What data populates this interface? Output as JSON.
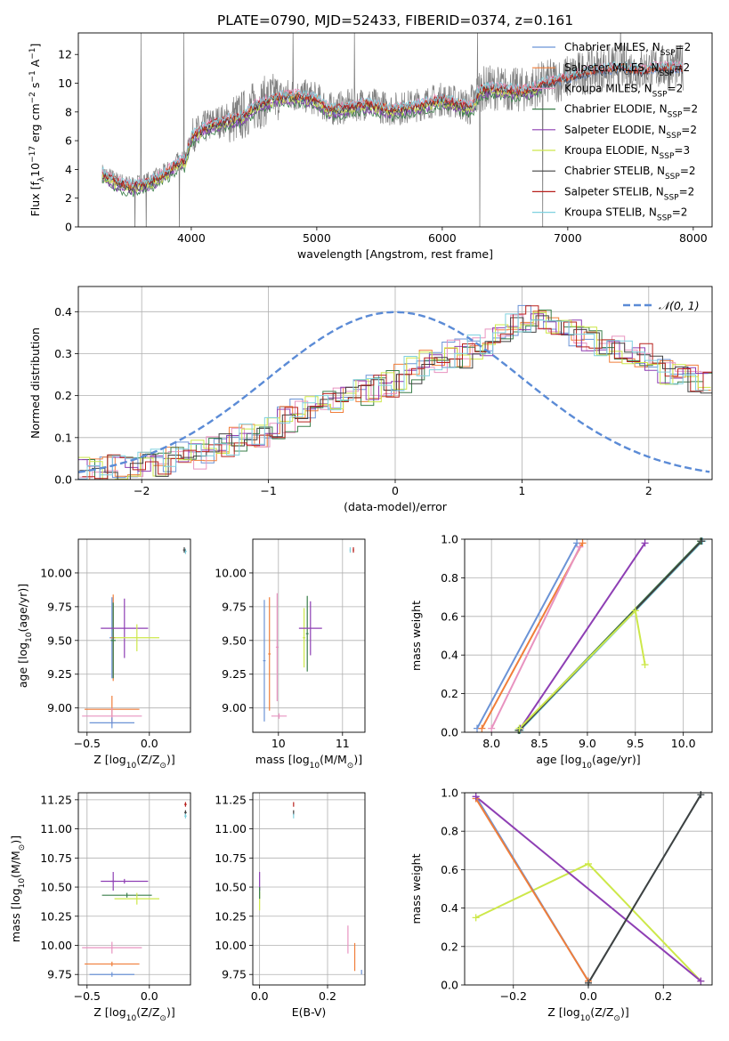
{
  "figure": {
    "title": "PLATE=0790, MJD=52433, FIBERID=0374, z=0.161"
  },
  "colors": {
    "data_grey": "#7f7f7f",
    "chabrier_miles": "#6b93d6",
    "salpeter_miles": "#f07e3a",
    "kroupa_miles": "#e893c0",
    "chabrier_elodie": "#3a7f4a",
    "salpeter_elodie": "#8e3fb4",
    "kroupa_elodie": "#cde84a",
    "chabrier_stelib": "#404040",
    "salpeter_stelib": "#b8201c",
    "kroupa_stelib": "#7fd1df",
    "gaussian": "#5b8bd6",
    "grid": "#b0b0b0"
  },
  "chart_data": [
    {
      "id": "spectrum",
      "type": "line",
      "title": "PLATE=0790, MJD=52433, FIBERID=0374, z=0.161",
      "xlabel": "wavelength [Angstrom, rest frame]",
      "ylabel_parts": [
        "Flux [f",
        "λ",
        "10",
        "−17",
        " erg cm",
        "−2",
        " s",
        "−1",
        " A",
        "−1",
        "]"
      ],
      "xlim": [
        3100,
        8150
      ],
      "ylim": [
        0,
        13.5
      ],
      "xticks": [
        4000,
        5000,
        6000,
        7000,
        8000
      ],
      "yticks": [
        0,
        2,
        4,
        6,
        8,
        10,
        12
      ],
      "grid": false,
      "legend_position": "upper right",
      "legend": [
        {
          "name": "Chabrier MILES, N",
          "sub": "SSP",
          "suffix": "=2",
          "color_key": "chabrier_miles"
        },
        {
          "name": "Salpeter MILES, N",
          "sub": "SSP",
          "suffix": "=2",
          "color_key": "salpeter_miles"
        },
        {
          "name": "Kroupa MILES, N",
          "sub": "SSP",
          "suffix": "=2",
          "color_key": "kroupa_miles"
        },
        {
          "name": "Chabrier ELODIE, N",
          "sub": "SSP",
          "suffix": "=2",
          "color_key": "chabrier_elodie"
        },
        {
          "name": "Salpeter ELODIE, N",
          "sub": "SSP",
          "suffix": "=2",
          "color_key": "salpeter_elodie"
        },
        {
          "name": "Kroupa ELODIE, N",
          "sub": "SSP",
          "suffix": "=3",
          "color_key": "kroupa_elodie"
        },
        {
          "name": "Chabrier STELIB, N",
          "sub": "SSP",
          "suffix": "=2",
          "color_key": "chabrier_stelib"
        },
        {
          "name": "Salpeter STELIB, N",
          "sub": "SSP",
          "suffix": "=2",
          "color_key": "salpeter_stelib"
        },
        {
          "name": "Kroupa STELIB, N",
          "sub": "SSP",
          "suffix": "=2",
          "color_key": "kroupa_stelib"
        }
      ],
      "continuum_knots": [
        [
          3280,
          3.8
        ],
        [
          3400,
          3.2
        ],
        [
          3500,
          2.9
        ],
        [
          3600,
          3.0
        ],
        [
          3700,
          3.3
        ],
        [
          3800,
          3.8
        ],
        [
          3900,
          4.6
        ],
        [
          3950,
          4.6
        ],
        [
          4000,
          6.3
        ],
        [
          4100,
          6.9
        ],
        [
          4200,
          7.3
        ],
        [
          4300,
          7.5
        ],
        [
          4400,
          7.7
        ],
        [
          4500,
          8.4
        ],
        [
          4600,
          8.8
        ],
        [
          4700,
          9.1
        ],
        [
          4800,
          9.2
        ],
        [
          4900,
          9.1
        ],
        [
          5000,
          8.9
        ],
        [
          5100,
          8.2
        ],
        [
          5200,
          8.3
        ],
        [
          5300,
          8.5
        ],
        [
          5400,
          8.6
        ],
        [
          5500,
          8.4
        ],
        [
          5600,
          8.2
        ],
        [
          5700,
          8.3
        ],
        [
          5800,
          8.5
        ],
        [
          5900,
          8.7
        ],
        [
          6000,
          8.9
        ],
        [
          6100,
          8.7
        ],
        [
          6200,
          8.4
        ],
        [
          6250,
          8.6
        ],
        [
          6300,
          9.6
        ],
        [
          6400,
          9.7
        ],
        [
          6500,
          9.6
        ],
        [
          6600,
          9.5
        ],
        [
          6700,
          9.6
        ],
        [
          6800,
          10.0
        ],
        [
          6900,
          10.2
        ],
        [
          7000,
          10.4
        ],
        [
          7100,
          10.7
        ],
        [
          7200,
          10.9
        ],
        [
          7300,
          11.0
        ],
        [
          7400,
          11.1
        ],
        [
          7500,
          11.0
        ],
        [
          7600,
          10.9
        ],
        [
          7700,
          11.1
        ],
        [
          7800,
          11.1
        ],
        [
          7920,
          11.1
        ]
      ],
      "sky_spikes": [
        3550,
        3600,
        3640,
        3905,
        3940,
        4810,
        5300,
        6280,
        6300,
        6800,
        7420
      ]
    },
    {
      "id": "residuals",
      "type": "line",
      "xlabel": "(data-model)/error",
      "ylabel": "Normed distribution",
      "xlim": [
        -2.5,
        2.5
      ],
      "ylim": [
        0,
        0.46
      ],
      "xticks": [
        -2,
        -1,
        0,
        1,
        2
      ],
      "yticks": [
        0.0,
        0.1,
        0.2,
        0.3,
        0.4
      ],
      "grid": true,
      "legend": [
        {
          "name": "𝒩(0, 1)",
          "color_key": "gaussian",
          "dashed": true
        }
      ],
      "hist_bin_start": -2.5,
      "hist_bin_width": 0.1,
      "hist_base": [
        0.02,
        0.02,
        0.03,
        0.03,
        0.03,
        0.04,
        0.04,
        0.05,
        0.06,
        0.06,
        0.07,
        0.08,
        0.09,
        0.1,
        0.11,
        0.13,
        0.14,
        0.16,
        0.17,
        0.18,
        0.19,
        0.2,
        0.21,
        0.22,
        0.23,
        0.24,
        0.26,
        0.28,
        0.29,
        0.3,
        0.3,
        0.31,
        0.33,
        0.34,
        0.36,
        0.38,
        0.39,
        0.38,
        0.37,
        0.35,
        0.34,
        0.33,
        0.31,
        0.3,
        0.29,
        0.27,
        0.26,
        0.25,
        0.24,
        0.23
      ]
    },
    {
      "id": "age_vs_z",
      "type": "scatter",
      "xlabel_parts": [
        "Z [log",
        "10",
        "(Z/Z",
        "⊙",
        ")]"
      ],
      "ylabel_parts": [
        "age  [log",
        "10",
        "(age/yr)]"
      ],
      "xlim": [
        -0.57,
        0.33
      ],
      "ylim": [
        8.82,
        10.25
      ],
      "xticks": [
        -0.5,
        0.0
      ],
      "yticks": [
        9.0,
        9.25,
        9.5,
        9.75,
        10.0
      ],
      "grid": true,
      "points": [
        {
          "x": -0.3,
          "y": 9.52,
          "xerr": 0.02,
          "yerr": 0.3,
          "color_key": "chabrier_miles"
        },
        {
          "x": -0.29,
          "y": 9.52,
          "xerr": 0.02,
          "yerr": 0.32,
          "color_key": "salpeter_miles"
        },
        {
          "x": -0.29,
          "y": 9.5,
          "xerr": 0.02,
          "yerr": 0.28,
          "color_key": "chabrier_elodie"
        },
        {
          "x": -0.2,
          "y": 9.59,
          "xerr": 0.19,
          "yerr": 0.22,
          "color_key": "salpeter_elodie"
        },
        {
          "x": -0.1,
          "y": 9.52,
          "xerr": 0.18,
          "yerr": 0.1,
          "color_key": "kroupa_elodie"
        },
        {
          "x": -0.3,
          "y": 8.99,
          "xerr": 0.22,
          "yerr": 0.1,
          "color_key": "salpeter_miles"
        },
        {
          "x": -0.3,
          "y": 8.94,
          "xerr": 0.24,
          "yerr": 0.06,
          "color_key": "kroupa_miles"
        },
        {
          "x": -0.3,
          "y": 8.89,
          "xerr": 0.18,
          "yerr": 0.04,
          "color_key": "chabrier_miles"
        },
        {
          "x": 0.29,
          "y": 10.16,
          "xerr": 0.01,
          "yerr": 0.02,
          "color_key": "kroupa_stelib"
        },
        {
          "x": 0.28,
          "y": 10.17,
          "xerr": 0.01,
          "yerr": 0.02,
          "color_key": "chabrier_stelib"
        }
      ]
    },
    {
      "id": "age_vs_mass",
      "type": "scatter",
      "xlabel_parts": [
        "mass [log",
        "10",
        "(M/M",
        "⊙",
        ")]"
      ],
      "xlim": [
        9.6,
        11.35
      ],
      "ylim": [
        8.82,
        10.25
      ],
      "xticks": [
        10,
        11
      ],
      "yticks": [
        9.0,
        9.25,
        9.5,
        9.75,
        10.0
      ],
      "grid": true,
      "points": [
        {
          "x": 9.78,
          "y": 9.35,
          "xerr": 0.02,
          "yerr": 0.45,
          "color_key": "chabrier_miles"
        },
        {
          "x": 9.86,
          "y": 9.4,
          "xerr": 0.02,
          "yerr": 0.42,
          "color_key": "salpeter_miles"
        },
        {
          "x": 9.98,
          "y": 9.45,
          "xerr": 0.02,
          "yerr": 0.4,
          "color_key": "kroupa_miles"
        },
        {
          "x": 10.01,
          "y": 8.94,
          "xerr": 0.12,
          "yerr": 0.02,
          "color_key": "kroupa_miles"
        },
        {
          "x": 10.4,
          "y": 9.52,
          "xerr": 0.02,
          "yerr": 0.22,
          "color_key": "kroupa_elodie"
        },
        {
          "x": 10.45,
          "y": 9.55,
          "xerr": 0.02,
          "yerr": 0.28,
          "color_key": "chabrier_elodie"
        },
        {
          "x": 10.5,
          "y": 9.59,
          "xerr": 0.18,
          "yerr": 0.2,
          "color_key": "salpeter_elodie"
        },
        {
          "x": 11.12,
          "y": 10.17,
          "xerr": 0.01,
          "yerr": 0.02,
          "color_key": "kroupa_stelib"
        },
        {
          "x": 11.17,
          "y": 10.17,
          "xerr": 0.01,
          "yerr": 0.02,
          "color_key": "salpeter_stelib"
        }
      ]
    },
    {
      "id": "weight_vs_age",
      "type": "line",
      "xlabel_parts": [
        "age  [log",
        "10",
        "(age/yr)]"
      ],
      "ylabel": "mass weight",
      "xlim": [
        7.72,
        10.3
      ],
      "ylim": [
        0.0,
        1.0
      ],
      "xticks": [
        8.0,
        8.5,
        9.0,
        9.5,
        10.0
      ],
      "yticks": [
        0.0,
        0.2,
        0.4,
        0.6,
        0.8,
        1.0
      ],
      "grid": true,
      "series": [
        {
          "color_key": "chabrier_miles",
          "x": [
            7.85,
            8.89
          ],
          "y": [
            0.02,
            0.98
          ]
        },
        {
          "color_key": "salpeter_miles",
          "x": [
            7.9,
            8.95
          ],
          "y": [
            0.02,
            0.98
          ]
        },
        {
          "color_key": "kroupa_miles",
          "x": [
            8.0,
            8.92
          ],
          "y": [
            0.02,
            0.96
          ]
        },
        {
          "color_key": "salpeter_elodie",
          "x": [
            8.3,
            9.6
          ],
          "y": [
            0.02,
            0.98
          ]
        },
        {
          "color_key": "chabrier_elodie",
          "x": [
            8.28,
            10.18
          ],
          "y": [
            0.01,
            0.99
          ]
        },
        {
          "color_key": "kroupa_stelib",
          "x": [
            8.3,
            10.2
          ],
          "y": [
            0.01,
            0.99
          ]
        },
        {
          "color_key": "chabrier_stelib",
          "x": [
            8.29,
            10.19
          ],
          "y": [
            0.01,
            0.99
          ]
        },
        {
          "color_key": "kroupa_elodie",
          "x": [
            8.29,
            9.5,
            9.6
          ],
          "y": [
            0.02,
            0.63,
            0.35
          ]
        }
      ]
    },
    {
      "id": "mass_vs_z",
      "type": "scatter",
      "xlabel_parts": [
        "Z [log",
        "10",
        "(Z/Z",
        "⊙",
        ")]"
      ],
      "ylabel_parts": [
        "mass [log",
        "10",
        "(M/M",
        "⊙",
        ")]"
      ],
      "xlim": [
        -0.57,
        0.33
      ],
      "ylim": [
        9.66,
        11.31
      ],
      "xticks": [
        -0.5,
        0.0
      ],
      "yticks": [
        9.75,
        10.0,
        10.25,
        10.5,
        10.75,
        11.0,
        11.25
      ],
      "grid": true,
      "points": [
        {
          "x": -0.29,
          "y": 10.55,
          "xerr": 0.02,
          "yerr": 0.08,
          "color_key": "salpeter_elodie"
        },
        {
          "x": -0.2,
          "y": 10.55,
          "xerr": 0.19,
          "yerr": 0.02,
          "color_key": "salpeter_elodie"
        },
        {
          "x": -0.18,
          "y": 10.43,
          "xerr": 0.2,
          "yerr": 0.02,
          "color_key": "chabrier_elodie"
        },
        {
          "x": -0.1,
          "y": 10.4,
          "xerr": 0.18,
          "yerr": 0.05,
          "color_key": "kroupa_elodie"
        },
        {
          "x": -0.3,
          "y": 9.98,
          "xerr": 0.24,
          "yerr": 0.05,
          "color_key": "kroupa_miles"
        },
        {
          "x": -0.3,
          "y": 9.84,
          "xerr": 0.22,
          "yerr": 0.02,
          "color_key": "salpeter_miles"
        },
        {
          "x": -0.3,
          "y": 9.75,
          "xerr": 0.18,
          "yerr": 0.02,
          "color_key": "chabrier_miles"
        },
        {
          "x": 0.29,
          "y": 11.21,
          "xerr": 0.01,
          "yerr": 0.02,
          "color_key": "salpeter_stelib"
        },
        {
          "x": 0.29,
          "y": 11.14,
          "xerr": 0.01,
          "yerr": 0.02,
          "color_key": "chabrier_stelib"
        },
        {
          "x": 0.29,
          "y": 11.11,
          "xerr": 0.01,
          "yerr": 0.02,
          "color_key": "kroupa_stelib"
        }
      ]
    },
    {
      "id": "mass_vs_ebv",
      "type": "scatter",
      "xlabel": "E(B-V)",
      "xlim": [
        -0.02,
        0.31
      ],
      "ylim": [
        9.66,
        11.31
      ],
      "xticks": [
        0.0,
        0.2
      ],
      "yticks": [
        9.75,
        10.0,
        10.25,
        10.5,
        10.75,
        11.0,
        11.25
      ],
      "grid": true,
      "points": [
        {
          "x": 0.0,
          "y": 10.55,
          "xerr": 0.0,
          "yerr": 0.08,
          "color_key": "salpeter_elodie"
        },
        {
          "x": 0.0,
          "y": 10.38,
          "xerr": 0.0,
          "yerr": 0.08,
          "color_key": "kroupa_elodie"
        },
        {
          "x": 0.0,
          "y": 10.45,
          "xerr": 0.0,
          "yerr": 0.05,
          "color_key": "chabrier_elodie"
        },
        {
          "x": 0.1,
          "y": 11.21,
          "xerr": 0.0,
          "yerr": 0.02,
          "color_key": "salpeter_stelib"
        },
        {
          "x": 0.1,
          "y": 11.14,
          "xerr": 0.0,
          "yerr": 0.02,
          "color_key": "chabrier_stelib"
        },
        {
          "x": 0.1,
          "y": 11.11,
          "xerr": 0.0,
          "yerr": 0.02,
          "color_key": "kroupa_stelib"
        },
        {
          "x": 0.26,
          "y": 10.05,
          "xerr": 0.0,
          "yerr": 0.12,
          "color_key": "kroupa_miles"
        },
        {
          "x": 0.28,
          "y": 9.9,
          "xerr": 0.0,
          "yerr": 0.12,
          "color_key": "salpeter_miles"
        },
        {
          "x": 0.3,
          "y": 9.77,
          "xerr": 0.0,
          "yerr": 0.02,
          "color_key": "chabrier_miles"
        }
      ]
    },
    {
      "id": "weight_vs_z",
      "type": "line",
      "xlabel_parts": [
        "Z [log",
        "10",
        "(Z/Z",
        "⊙",
        ")]"
      ],
      "ylabel": "mass weight",
      "xlim": [
        -0.33,
        0.33
      ],
      "ylim": [
        0.0,
        1.0
      ],
      "xticks": [
        -0.2,
        0.0,
        0.2
      ],
      "yticks": [
        0.0,
        0.2,
        0.4,
        0.6,
        0.8,
        1.0
      ],
      "grid": true,
      "series": [
        {
          "color_key": "kroupa_elodie",
          "x": [
            -0.3,
            0.0,
            0.3
          ],
          "y": [
            0.35,
            0.63,
            0.02
          ]
        },
        {
          "color_key": "chabrier_miles",
          "x": [
            -0.3,
            0.0
          ],
          "y": [
            0.98,
            0.02
          ]
        },
        {
          "color_key": "salpeter_miles",
          "x": [
            -0.3,
            0.0
          ],
          "y": [
            0.97,
            0.02
          ]
        },
        {
          "color_key": "salpeter_elodie",
          "x": [
            -0.3,
            0.3
          ],
          "y": [
            0.98,
            0.02
          ]
        },
        {
          "color_key": "kroupa_stelib",
          "x": [
            0.0,
            0.3
          ],
          "y": [
            0.01,
            0.99
          ]
        },
        {
          "color_key": "chabrier_stelib",
          "x": [
            0.0,
            0.3
          ],
          "y": [
            0.01,
            0.99
          ]
        }
      ]
    }
  ]
}
